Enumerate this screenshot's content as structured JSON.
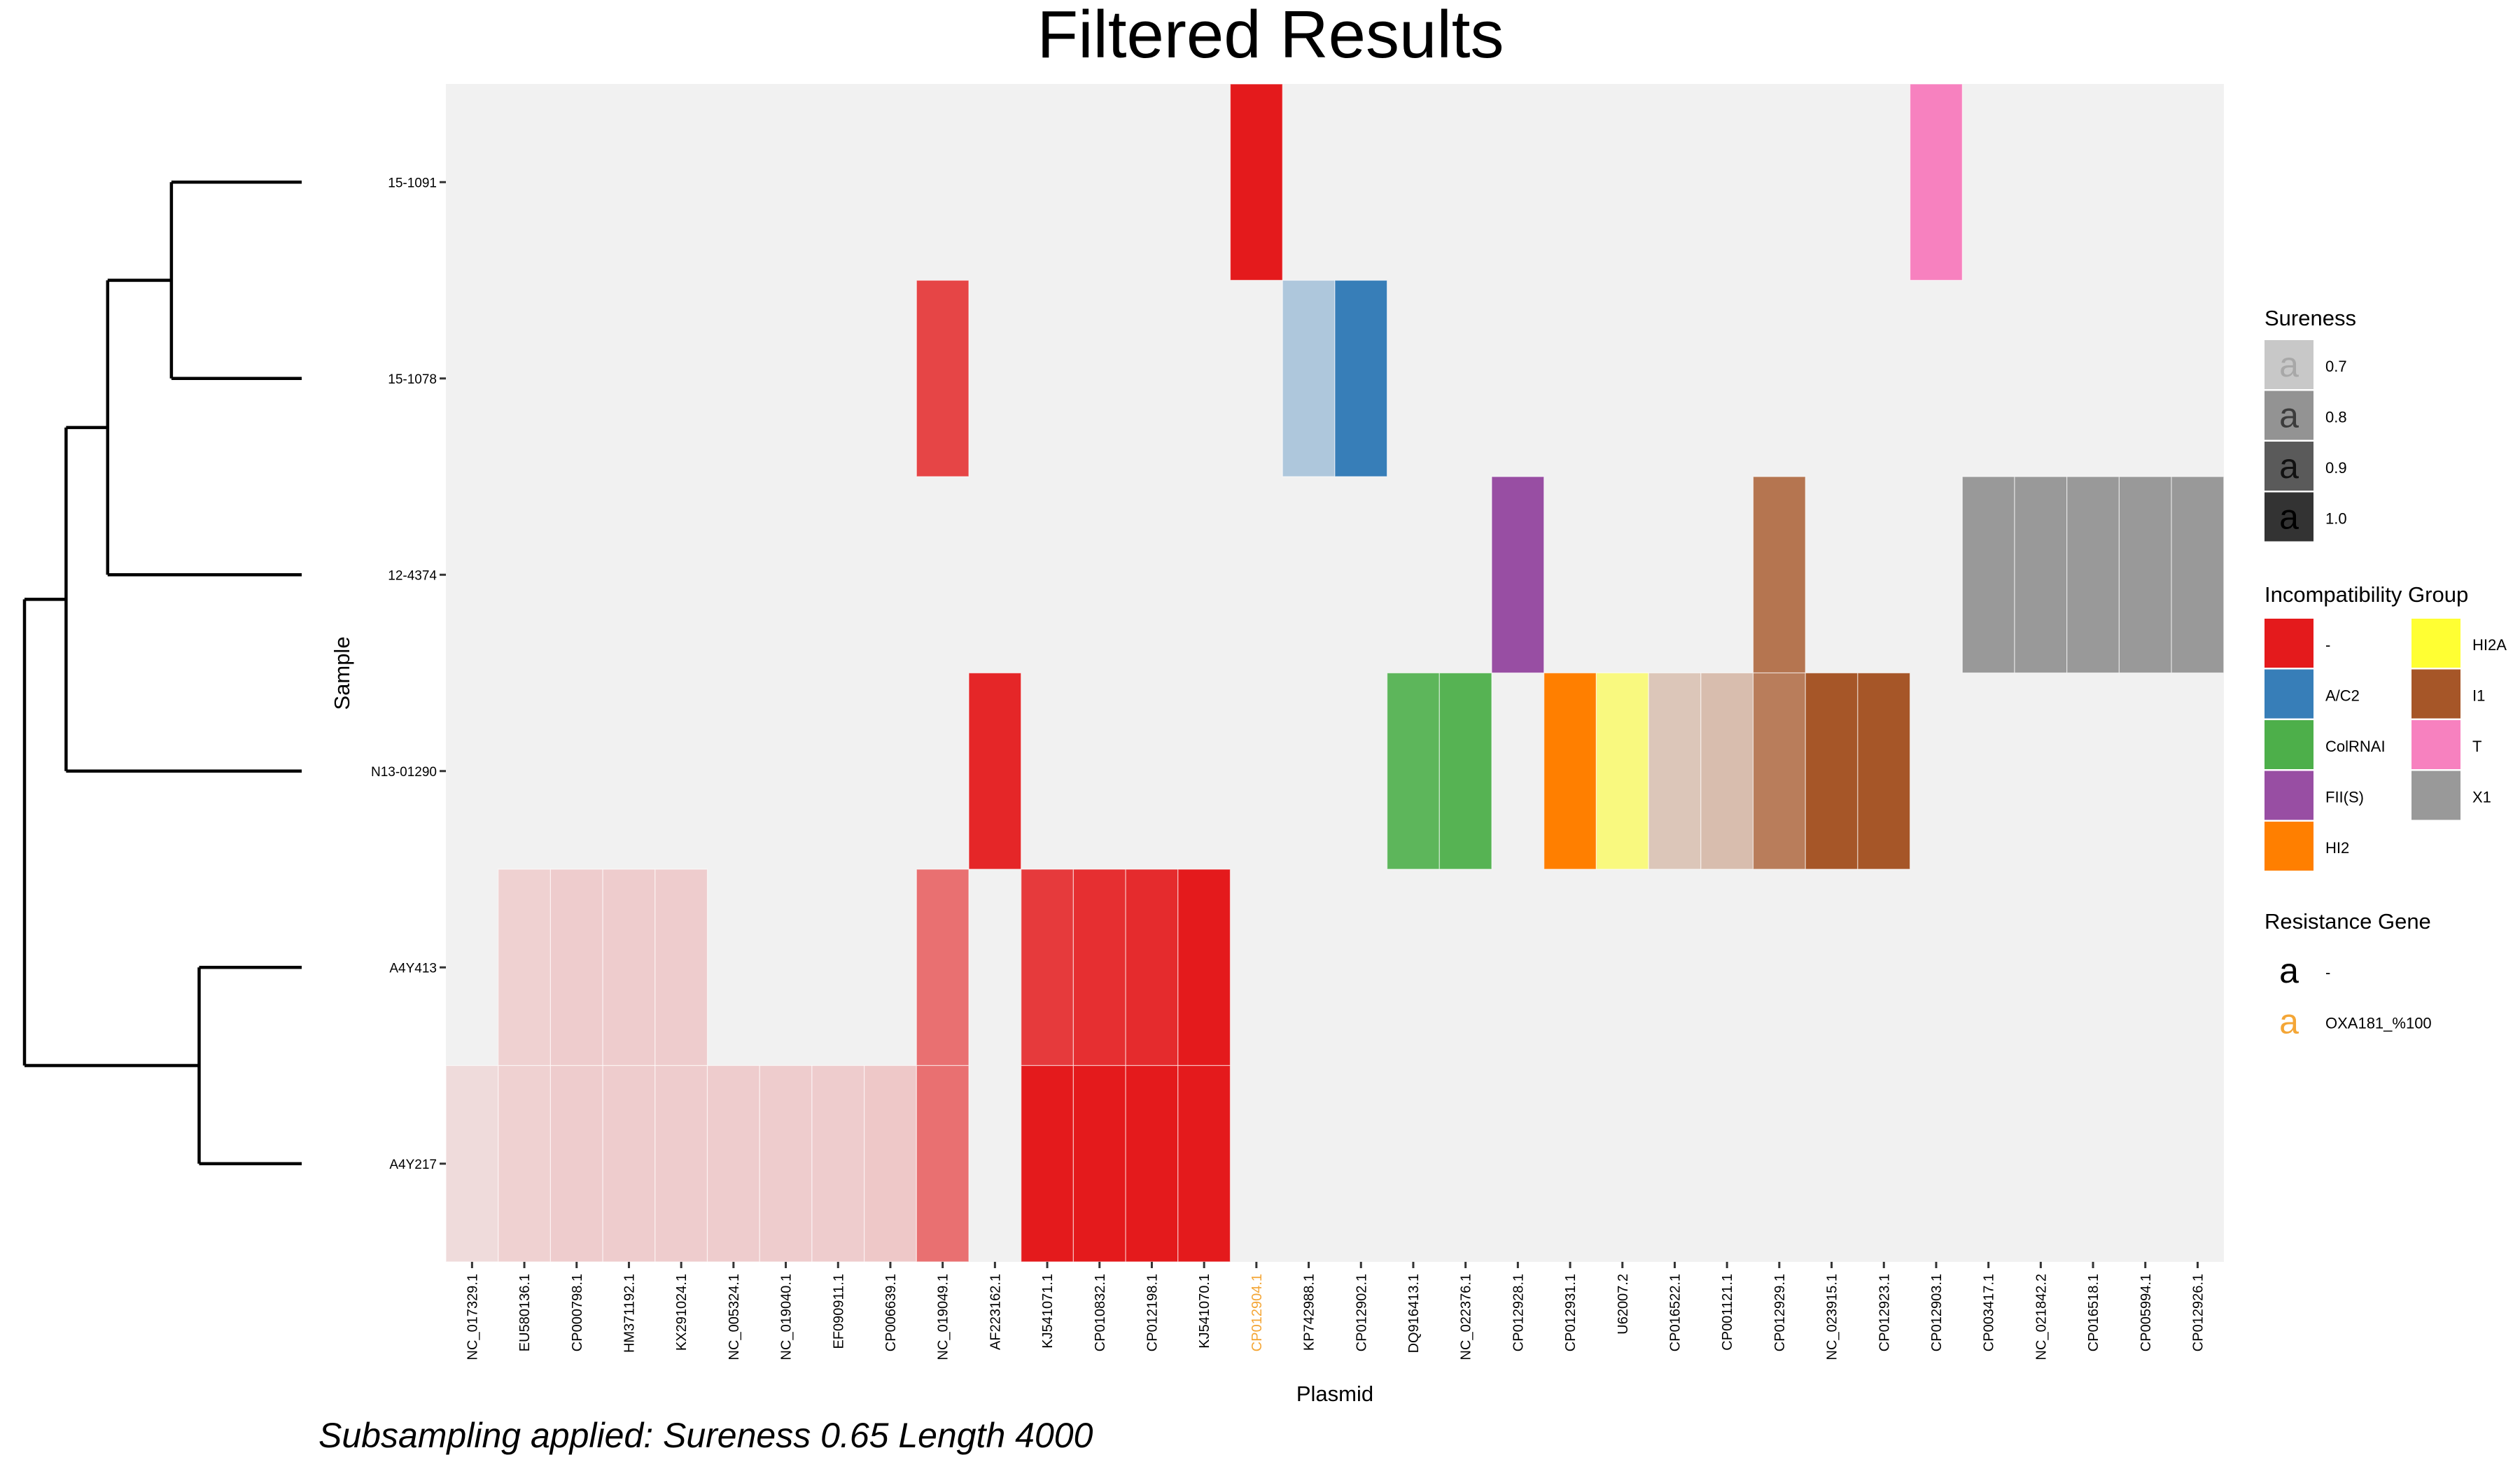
{
  "chart_data": {
    "type": "heatmap",
    "title": "Filtered Results",
    "xlabel": "Plasmid",
    "ylabel": "Sample",
    "grid": false,
    "legend_position": "right",
    "caption": "Subsampling applied: Sureness 0.65 Length 4000",
    "samples": [
      "15-1091",
      "15-1078",
      "12-4374",
      "N13-01290",
      "A4Y413",
      "A4Y217"
    ],
    "plasmids": [
      "NC_017329.1",
      "EU580136.1",
      "CP000798.1",
      "HM371192.1",
      "KX291024.1",
      "NC_005324.1",
      "NC_019040.1",
      "EF090911.1",
      "CP006639.1",
      "NC_019049.1",
      "AF223162.1",
      "KJ541071.1",
      "CP010832.1",
      "CP012198.1",
      "KJ541070.1",
      "CP012904.1",
      "KP742988.1",
      "CP012902.1",
      "DQ916413.1",
      "NC_022376.1",
      "CP012928.1",
      "CP012931.1",
      "U62007.2",
      "CP016522.1",
      "CP001121.1",
      "CP012929.1",
      "NC_023915.1",
      "CP012923.1",
      "CP012903.1",
      "CP003417.1",
      "NC_021842.2",
      "CP016518.1",
      "CP005994.1",
      "CP012926.1"
    ],
    "plasmid_label_colors": {
      "CP012904.1": "#F4A636"
    },
    "group_colors": {
      "-": "#E41A1C",
      "A/C2": "#377EB8",
      "ColRNAI": "#4DAF4A",
      "FII(S)": "#984EA3",
      "HI2": "#FF7F00",
      "HI2A": "#FFFF33",
      "I1": "#A65628",
      "T": "#F781BF",
      "X1": "#999999"
    },
    "cells": [
      {
        "sample": "15-1091",
        "plasmid": "CP012904.1",
        "group": "-",
        "sureness": 1.0
      },
      {
        "sample": "15-1091",
        "plasmid": "CP012903.1",
        "group": "T",
        "sureness": 1.0
      },
      {
        "sample": "15-1078",
        "plasmid": "NC_019049.1",
        "group": "-",
        "sureness": 0.8
      },
      {
        "sample": "15-1078",
        "plasmid": "KP742988.1",
        "group": "A/C2",
        "sureness": 0.36
      },
      {
        "sample": "15-1078",
        "plasmid": "CP012902.1",
        "group": "A/C2",
        "sureness": 1.0
      },
      {
        "sample": "12-4374",
        "plasmid": "CP012928.1",
        "group": "FII(S)",
        "sureness": 1.0
      },
      {
        "sample": "12-4374",
        "plasmid": "CP012929.1",
        "group": "I1",
        "sureness": 0.8
      },
      {
        "sample": "12-4374",
        "plasmid": "CP003417.1",
        "group": "X1",
        "sureness": 1.0
      },
      {
        "sample": "12-4374",
        "plasmid": "NC_021842.2",
        "group": "X1",
        "sureness": 1.0
      },
      {
        "sample": "12-4374",
        "plasmid": "CP016518.1",
        "group": "X1",
        "sureness": 1.0
      },
      {
        "sample": "12-4374",
        "plasmid": "CP005994.1",
        "group": "X1",
        "sureness": 1.0
      },
      {
        "sample": "12-4374",
        "plasmid": "CP012926.1",
        "group": "X1",
        "sureness": 1.0
      },
      {
        "sample": "N13-01290",
        "plasmid": "AF223162.1",
        "group": "-",
        "sureness": 0.95
      },
      {
        "sample": "N13-01290",
        "plasmid": "DQ916413.1",
        "group": "ColRNAI",
        "sureness": 0.9
      },
      {
        "sample": "N13-01290",
        "plasmid": "NC_022376.1",
        "group": "ColRNAI",
        "sureness": 0.95
      },
      {
        "sample": "N13-01290",
        "plasmid": "CP012931.1",
        "group": "HI2",
        "sureness": 1.0
      },
      {
        "sample": "N13-01290",
        "plasmid": "U62007.2",
        "group": "HI2A",
        "sureness": 0.6
      },
      {
        "sample": "N13-01290",
        "plasmid": "CP016522.1",
        "group": "I1",
        "sureness": 0.28
      },
      {
        "sample": "N13-01290",
        "plasmid": "CP001121.1",
        "group": "I1",
        "sureness": 0.33
      },
      {
        "sample": "N13-01290",
        "plasmid": "CP012929.1",
        "group": "I1",
        "sureness": 0.75
      },
      {
        "sample": "N13-01290",
        "plasmid": "NC_023915.1",
        "group": "I1",
        "sureness": 1.0
      },
      {
        "sample": "N13-01290",
        "plasmid": "CP012923.1",
        "group": "I1",
        "sureness": 1.0
      },
      {
        "sample": "A4Y413",
        "plasmid": "EU580136.1",
        "group": "-",
        "sureness": 0.15
      },
      {
        "sample": "A4Y413",
        "plasmid": "CP000798.1",
        "group": "-",
        "sureness": 0.17
      },
      {
        "sample": "A4Y413",
        "plasmid": "HM371192.1",
        "group": "-",
        "sureness": 0.17
      },
      {
        "sample": "A4Y413",
        "plasmid": "KX291024.1",
        "group": "-",
        "sureness": 0.17
      },
      {
        "sample": "A4Y413",
        "plasmid": "NC_019049.1",
        "group": "-",
        "sureness": 0.6
      },
      {
        "sample": "A4Y413",
        "plasmid": "KJ541071.1",
        "group": "-",
        "sureness": 0.85
      },
      {
        "sample": "A4Y413",
        "plasmid": "CP010832.1",
        "group": "-",
        "sureness": 0.9
      },
      {
        "sample": "A4Y413",
        "plasmid": "CP012198.1",
        "group": "-",
        "sureness": 0.92
      },
      {
        "sample": "A4Y413",
        "plasmid": "KJ541070.1",
        "group": "-",
        "sureness": 1.0
      },
      {
        "sample": "A4Y217",
        "plasmid": "NC_017329.1",
        "group": "-",
        "sureness": 0.1
      },
      {
        "sample": "A4Y217",
        "plasmid": "EU580136.1",
        "group": "-",
        "sureness": 0.15
      },
      {
        "sample": "A4Y217",
        "plasmid": "CP000798.1",
        "group": "-",
        "sureness": 0.17
      },
      {
        "sample": "A4Y217",
        "plasmid": "HM371192.1",
        "group": "-",
        "sureness": 0.17
      },
      {
        "sample": "A4Y217",
        "plasmid": "KX291024.1",
        "group": "-",
        "sureness": 0.17
      },
      {
        "sample": "A4Y217",
        "plasmid": "NC_005324.1",
        "group": "-",
        "sureness": 0.17
      },
      {
        "sample": "A4Y217",
        "plasmid": "NC_019040.1",
        "group": "-",
        "sureness": 0.17
      },
      {
        "sample": "A4Y217",
        "plasmid": "EF090911.1",
        "group": "-",
        "sureness": 0.17
      },
      {
        "sample": "A4Y217",
        "plasmid": "CP006639.1",
        "group": "-",
        "sureness": 0.19
      },
      {
        "sample": "A4Y217",
        "plasmid": "NC_019049.1",
        "group": "-",
        "sureness": 0.6
      },
      {
        "sample": "A4Y217",
        "plasmid": "KJ541071.1",
        "group": "-",
        "sureness": 1.0
      },
      {
        "sample": "A4Y217",
        "plasmid": "CP010832.1",
        "group": "-",
        "sureness": 1.0
      },
      {
        "sample": "A4Y217",
        "plasmid": "CP012198.1",
        "group": "-",
        "sureness": 1.0
      },
      {
        "sample": "A4Y217",
        "plasmid": "KJ541070.1",
        "group": "-",
        "sureness": 1.0
      }
    ],
    "dendrogram": {
      "leaves": [
        "15-1091",
        "15-1078",
        "12-4374",
        "N13-01290",
        "A4Y413",
        "A4Y217"
      ],
      "merges": [
        {
          "left": "15-1091",
          "right": "15-1078",
          "height": 0.47
        },
        {
          "left": "m0",
          "right": "12-4374",
          "height": 0.7
        },
        {
          "left": "m1",
          "right": "N13-01290",
          "height": 0.85
        },
        {
          "left": "A4Y413",
          "right": "A4Y217",
          "height": 0.37
        },
        {
          "left": "m2",
          "right": "m3",
          "height": 1.0
        }
      ]
    },
    "legends": {
      "sureness": {
        "title": "Sureness",
        "symbol": "a",
        "items": [
          {
            "label": "0.7",
            "fill": "#C8C8C8",
            "glyph_color": "#A8A8A8"
          },
          {
            "label": "0.8",
            "fill": "#939393",
            "glyph_color": "#3C3C3C"
          },
          {
            "label": "0.9",
            "fill": "#5A5A5A",
            "glyph_color": "#111111"
          },
          {
            "label": "1.0",
            "fill": "#333333",
            "glyph_color": "#000000"
          }
        ]
      },
      "incompatibility": {
        "title": "Incompatibility Group",
        "items": [
          "-",
          "A/C2",
          "ColRNAI",
          "FII(S)",
          "HI2",
          "HI2A",
          "I1",
          "T",
          "X1"
        ]
      },
      "resistance": {
        "title": "Resistance Gene",
        "symbol": "a",
        "items": [
          {
            "label": "-",
            "color": "#000000"
          },
          {
            "label": "OXA181_%100",
            "color": "#F4A636"
          }
        ]
      }
    }
  }
}
